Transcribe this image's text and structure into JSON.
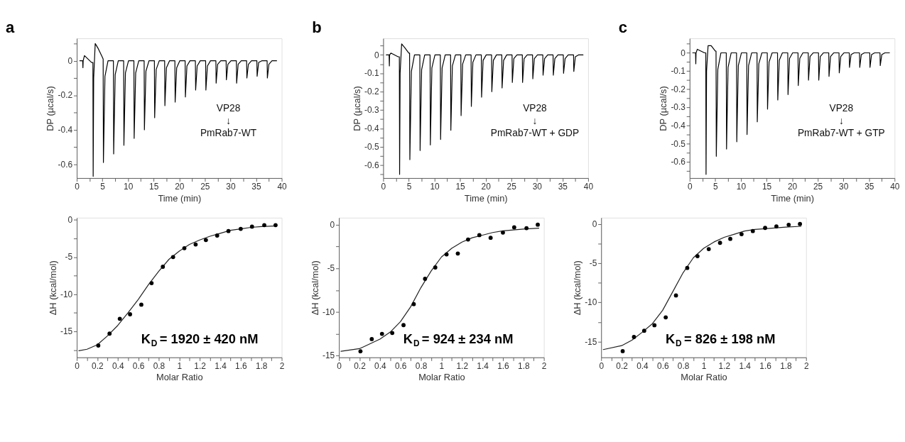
{
  "chart_data": [
    {
      "type": "line",
      "title": "a",
      "xlabel": "Time (min)",
      "ylabel": "DP (µcal/s)",
      "color": "#000000",
      "x": [
        0.6,
        1.15,
        1.2,
        1.25,
        1.5,
        2.9,
        3.15,
        3.2,
        3.3,
        3.6,
        4.2,
        5.0,
        5.15,
        5.2,
        5.5,
        6.1,
        7.15,
        7.2,
        7.5,
        8.1,
        9.15,
        9.2,
        9.5,
        10.1,
        11.15,
        11.2,
        11.5,
        12.1,
        13.15,
        13.2,
        13.5,
        14.1,
        15.15,
        15.2,
        15.5,
        16.1,
        17.15,
        17.2,
        17.5,
        18.1,
        19.15,
        19.2,
        19.5,
        20.1,
        21.15,
        21.2,
        21.5,
        22.1,
        23.15,
        23.2,
        23.5,
        24.1,
        25.15,
        25.2,
        25.5,
        26.1,
        27.15,
        27.2,
        27.5,
        28.1,
        29.15,
        29.2,
        29.5,
        30.1,
        31.15,
        31.2,
        31.5,
        32.1,
        33.15,
        33.2,
        33.5,
        34.1,
        35.15,
        35.2,
        35.5,
        36.1,
        37.15,
        37.2,
        37.5,
        38.1,
        39.0
      ],
      "values": [
        0,
        0,
        -0.04,
        0,
        0.03,
        -0.01,
        -0.01,
        -0.67,
        -0.1,
        0.1,
        0.07,
        0.02,
        0.01,
        -0.59,
        -0.09,
        0,
        0,
        -0.54,
        -0.08,
        0,
        0,
        -0.49,
        -0.07,
        0,
        0,
        -0.45,
        -0.07,
        0,
        0,
        -0.4,
        -0.06,
        0,
        0,
        -0.33,
        -0.05,
        0,
        0,
        -0.26,
        -0.04,
        0,
        0,
        -0.24,
        -0.04,
        0,
        0,
        -0.21,
        -0.03,
        0,
        0,
        -0.17,
        -0.03,
        0,
        0,
        -0.17,
        -0.03,
        0,
        0,
        -0.13,
        -0.02,
        0,
        0,
        -0.11,
        -0.02,
        0,
        0,
        -0.13,
        -0.02,
        0,
        0,
        -0.1,
        -0.02,
        0,
        0,
        -0.09,
        -0.01,
        0,
        0,
        -0.1,
        -0.02,
        0,
        0
      ],
      "xlim": [
        0,
        40
      ],
      "xticks": [
        0,
        {
          "value": 2.5,
          "label": null
        },
        5,
        {
          "value": 7.5,
          "label": null
        },
        10,
        {
          "value": 12.5,
          "label": null
        },
        15,
        {
          "value": 17.5,
          "label": null
        },
        20,
        {
          "value": 22.5,
          "label": null
        },
        25,
        {
          "value": 27.5,
          "label": null
        },
        30,
        {
          "value": 32.5,
          "label": null
        },
        35,
        {
          "value": 37.5,
          "label": null
        },
        40
      ],
      "ylim": [
        -0.68,
        0.13
      ],
      "yticks": [
        {
          "value": 0.1,
          "label": null
        },
        0,
        {
          "value": -0.1,
          "label": null
        },
        -0.2,
        {
          "value": -0.3,
          "label": null
        },
        -0.4,
        {
          "value": -0.5,
          "label": null
        },
        -0.6
      ],
      "annotations": [
        "VP28",
        "↓",
        "PmRab7-WT"
      ]
    },
    {
      "type": "line",
      "title": "b",
      "xlabel": "Time (min)",
      "ylabel": "DP (µcal/s)",
      "color": "#000000",
      "x": [
        0.6,
        1.15,
        1.2,
        1.25,
        1.5,
        2.9,
        3.15,
        3.2,
        3.3,
        3.6,
        4.2,
        5.0,
        5.15,
        5.2,
        5.5,
        6.1,
        7.15,
        7.2,
        7.5,
        8.1,
        9.15,
        9.2,
        9.5,
        10.1,
        11.15,
        11.2,
        11.5,
        12.1,
        13.15,
        13.2,
        13.5,
        14.1,
        15.15,
        15.2,
        15.5,
        16.1,
        17.15,
        17.2,
        17.5,
        18.1,
        19.15,
        19.2,
        19.5,
        20.1,
        21.15,
        21.2,
        21.5,
        22.1,
        23.15,
        23.2,
        23.5,
        24.1,
        25.15,
        25.2,
        25.5,
        26.1,
        27.15,
        27.2,
        27.5,
        28.1,
        29.15,
        29.2,
        29.5,
        30.1,
        31.15,
        31.2,
        31.5,
        32.1,
        33.15,
        33.2,
        33.5,
        34.1,
        35.15,
        35.2,
        35.5,
        36.1,
        37.15,
        37.2,
        37.5,
        38.1,
        39.0
      ],
      "values": [
        0,
        0,
        -0.06,
        0,
        0.01,
        -0.01,
        -0.01,
        -0.65,
        -0.1,
        0.06,
        0.04,
        0.01,
        0.01,
        -0.57,
        -0.09,
        0,
        0,
        -0.52,
        -0.08,
        0,
        0,
        -0.49,
        -0.07,
        0,
        0,
        -0.46,
        -0.07,
        0,
        0,
        -0.41,
        -0.06,
        0,
        0,
        -0.33,
        -0.05,
        0,
        0,
        -0.28,
        -0.04,
        0,
        0,
        -0.23,
        -0.03,
        0,
        0,
        -0.2,
        -0.03,
        0,
        0,
        -0.18,
        -0.03,
        0,
        0,
        -0.15,
        -0.02,
        0,
        0,
        -0.15,
        -0.02,
        0,
        0,
        -0.13,
        -0.02,
        0,
        0,
        -0.11,
        -0.02,
        0,
        0,
        -0.11,
        -0.02,
        0,
        0,
        -0.1,
        -0.02,
        0,
        0,
        -0.09,
        -0.01,
        0,
        0
      ],
      "xlim": [
        0,
        40
      ],
      "xticks": [
        0,
        {
          "value": 2.5,
          "label": null
        },
        5,
        {
          "value": 7.5,
          "label": null
        },
        10,
        {
          "value": 12.5,
          "label": null
        },
        15,
        {
          "value": 17.5,
          "label": null
        },
        20,
        {
          "value": 22.5,
          "label": null
        },
        25,
        {
          "value": 27.5,
          "label": null
        },
        30,
        {
          "value": 32.5,
          "label": null
        },
        35,
        {
          "value": 37.5,
          "label": null
        },
        40
      ],
      "ylim": [
        -0.67,
        0.09
      ],
      "yticks": [
        {
          "value": 0.05,
          "label": null
        },
        0,
        {
          "value": -0.05,
          "label": null
        },
        -0.1,
        {
          "value": -0.15,
          "label": null
        },
        -0.2,
        {
          "value": -0.25,
          "label": null
        },
        -0.3,
        {
          "value": -0.35,
          "label": null
        },
        -0.4,
        {
          "value": -0.45,
          "label": null
        },
        -0.5,
        {
          "value": -0.55,
          "label": null
        },
        -0.6,
        {
          "value": -0.65,
          "label": null
        }
      ],
      "annotations": [
        "VP28",
        "↓",
        "PmRab7-WT + GDP"
      ]
    },
    {
      "type": "line",
      "title": "c",
      "xlabel": "Time (min)",
      "ylabel": "DP (µcal/s)",
      "color": "#000000",
      "x": [
        0.6,
        1.15,
        1.2,
        1.25,
        1.5,
        2.9,
        3.15,
        3.2,
        3.3,
        3.6,
        4.2,
        5.0,
        5.15,
        5.2,
        5.5,
        6.1,
        7.15,
        7.2,
        7.5,
        8.1,
        9.15,
        9.2,
        9.5,
        10.1,
        11.15,
        11.2,
        11.5,
        12.1,
        13.15,
        13.2,
        13.5,
        14.1,
        15.15,
        15.2,
        15.5,
        16.1,
        17.15,
        17.2,
        17.5,
        18.1,
        19.15,
        19.2,
        19.5,
        20.1,
        21.15,
        21.2,
        21.5,
        22.1,
        23.15,
        23.2,
        23.5,
        24.1,
        25.15,
        25.2,
        25.5,
        26.1,
        27.15,
        27.2,
        27.5,
        28.1,
        29.15,
        29.2,
        29.5,
        30.1,
        31.15,
        31.2,
        31.5,
        32.1,
        33.15,
        33.2,
        33.5,
        34.1,
        35.15,
        35.2,
        35.5,
        36.1,
        37.15,
        37.2,
        37.5,
        38.1,
        39.0
      ],
      "values": [
        0,
        0,
        -0.06,
        0,
        0.02,
        0,
        0,
        -0.67,
        -0.1,
        0.04,
        0.04,
        0.01,
        0.01,
        -0.57,
        -0.09,
        0,
        0,
        -0.53,
        -0.08,
        0,
        0,
        -0.49,
        -0.07,
        0,
        0,
        -0.45,
        -0.07,
        0,
        0,
        -0.38,
        -0.06,
        0,
        0,
        -0.31,
        -0.05,
        0,
        0,
        -0.26,
        -0.04,
        0,
        0,
        -0.23,
        -0.03,
        0,
        0,
        -0.18,
        -0.03,
        0,
        0,
        -0.15,
        -0.02,
        0,
        0,
        -0.15,
        -0.02,
        0,
        0,
        -0.13,
        -0.02,
        0,
        0,
        -0.11,
        -0.02,
        0,
        0,
        -0.08,
        -0.01,
        0,
        0,
        -0.08,
        -0.01,
        0,
        0,
        -0.08,
        -0.01,
        0,
        0,
        -0.07,
        -0.01,
        0,
        0
      ],
      "xlim": [
        0,
        40
      ],
      "xticks": [
        0,
        {
          "value": 2.5,
          "label": null
        },
        5,
        {
          "value": 7.5,
          "label": null
        },
        10,
        {
          "value": 12.5,
          "label": null
        },
        15,
        {
          "value": 17.5,
          "label": null
        },
        20,
        {
          "value": 22.5,
          "label": null
        },
        25,
        {
          "value": 27.5,
          "label": null
        },
        30,
        {
          "value": 32.5,
          "label": null
        },
        35,
        {
          "value": 37.5,
          "label": null
        },
        40
      ],
      "ylim": [
        -0.69,
        0.08
      ],
      "yticks": [
        {
          "value": 0.05,
          "label": null
        },
        0,
        {
          "value": -0.05,
          "label": null
        },
        -0.1,
        {
          "value": -0.15,
          "label": null
        },
        -0.2,
        {
          "value": -0.25,
          "label": null
        },
        -0.3,
        {
          "value": -0.35,
          "label": null
        },
        -0.4,
        {
          "value": -0.45,
          "label": null
        },
        -0.5,
        {
          "value": -0.55,
          "label": null
        },
        -0.6,
        {
          "value": -0.65,
          "label": null
        }
      ],
      "annotations": [
        "VP28",
        "↓",
        "PmRab7-WT + GTP"
      ]
    },
    {
      "type": "scatter",
      "xlabel": "Molar Ratio",
      "ylabel": "ΔH (kcal/mol)",
      "series": [
        {
          "type": "scatter",
          "marker": "circle",
          "color": "#000000",
          "x": [
            0.21,
            0.32,
            0.42,
            0.52,
            0.63,
            0.73,
            0.84,
            0.94,
            1.05,
            1.16,
            1.26,
            1.37,
            1.48,
            1.6,
            1.71,
            1.83,
            1.94
          ],
          "values": [
            -16.9,
            -15.3,
            -13.3,
            -12.7,
            -11.4,
            -8.5,
            -6.3,
            -5.0,
            -3.8,
            -3.3,
            -2.7,
            -2.1,
            -1.5,
            -1.2,
            -0.9,
            -0.7,
            -0.7
          ]
        },
        {
          "type": "line",
          "color": "#222222",
          "x": [
            0.02,
            0.1,
            0.2,
            0.3,
            0.4,
            0.5,
            0.6,
            0.7,
            0.8,
            0.9,
            1.0,
            1.1,
            1.2,
            1.3,
            1.4,
            1.5,
            1.6,
            1.7,
            1.8,
            1.95
          ],
          "values": [
            -17.6,
            -17.4,
            -16.8,
            -15.6,
            -14.2,
            -12.5,
            -10.7,
            -8.7,
            -6.9,
            -5.3,
            -4.2,
            -3.3,
            -2.7,
            -2.2,
            -1.8,
            -1.4,
            -1.2,
            -1.0,
            -0.9,
            -0.8
          ]
        }
      ],
      "xlim": [
        0,
        2
      ],
      "xticks": [
        0,
        {
          "value": 0.1,
          "label": null
        },
        0.2,
        {
          "value": 0.3,
          "label": null
        },
        0.4,
        {
          "value": 0.5,
          "label": null
        },
        0.6,
        {
          "value": 0.7,
          "label": null
        },
        0.8,
        {
          "value": 0.9,
          "label": null
        },
        1,
        {
          "value": 1.1,
          "label": null
        },
        1.2,
        {
          "value": 1.3,
          "label": null
        },
        1.4,
        {
          "value": 1.5,
          "label": null
        },
        1.6,
        {
          "value": 1.7,
          "label": null
        },
        1.8,
        {
          "value": 1.9,
          "label": null
        },
        2
      ],
      "ylim": [
        -18.5,
        0.3
      ],
      "yticks": [
        0,
        {
          "value": -2.5,
          "label": null
        },
        -5,
        {
          "value": -7.5,
          "label": null
        },
        -10,
        {
          "value": -12.5,
          "label": null
        },
        -15,
        {
          "value": -17.5,
          "label": null
        }
      ],
      "annotations": [
        "K$_{D}$ = 1920 ± 420 nM"
      ]
    },
    {
      "type": "scatter",
      "xlabel": "Molar Ratio",
      "ylabel": "ΔH (kcal/mol)",
      "series": [
        {
          "type": "scatter",
          "marker": "circle",
          "color": "#000000",
          "x": [
            0.21,
            0.32,
            0.42,
            0.52,
            0.63,
            0.73,
            0.84,
            0.94,
            1.05,
            1.16,
            1.26,
            1.37,
            1.48,
            1.6,
            1.71,
            1.83,
            1.94
          ],
          "values": [
            -14.5,
            -13.1,
            -12.5,
            -12.4,
            -11.5,
            -9.1,
            -6.2,
            -4.9,
            -3.4,
            -3.3,
            -1.7,
            -1.2,
            -1.5,
            -0.9,
            -0.3,
            -0.4,
            0
          ]
        },
        {
          "type": "line",
          "color": "#222222",
          "x": [
            0.02,
            0.2,
            0.4,
            0.5,
            0.6,
            0.7,
            0.8,
            0.9,
            1.0,
            1.1,
            1.2,
            1.3,
            1.4,
            1.5,
            1.6,
            1.8,
            1.95
          ],
          "values": [
            -14.5,
            -14.2,
            -13.1,
            -12.3,
            -11.1,
            -9.4,
            -7.2,
            -5.3,
            -3.7,
            -2.7,
            -2.0,
            -1.5,
            -1.2,
            -0.9,
            -0.7,
            -0.5,
            -0.4
          ]
        }
      ],
      "xlim": [
        0,
        2
      ],
      "xticks": [
        0,
        {
          "value": 0.1,
          "label": null
        },
        0.2,
        {
          "value": 0.3,
          "label": null
        },
        0.4,
        {
          "value": 0.5,
          "label": null
        },
        0.6,
        {
          "value": 0.7,
          "label": null
        },
        0.8,
        {
          "value": 0.9,
          "label": null
        },
        1,
        {
          "value": 1.1,
          "label": null
        },
        1.2,
        {
          "value": 1.3,
          "label": null
        },
        1.4,
        {
          "value": 1.5,
          "label": null
        },
        1.6,
        {
          "value": 1.7,
          "label": null
        },
        1.8,
        {
          "value": 1.9,
          "label": null
        },
        2
      ],
      "ylim": [
        -15.2,
        0.8
      ],
      "yticks": [
        0,
        {
          "value": -2.5,
          "label": null
        },
        -5,
        {
          "value": -7.5,
          "label": null
        },
        -10,
        {
          "value": -12.5,
          "label": null
        },
        -15
      ],
      "annotations": [
        "K$_{D}$ = 924 ± 234 nM"
      ]
    },
    {
      "type": "scatter",
      "xlabel": "Molar Ratio",
      "ylabel": "ΔH (kcal/mol)",
      "series": [
        {
          "type": "scatter",
          "marker": "circle",
          "color": "#000000",
          "x": [
            0.21,
            0.32,
            0.42,
            0.52,
            0.63,
            0.73,
            0.84,
            0.94,
            1.05,
            1.16,
            1.26,
            1.37,
            1.48,
            1.6,
            1.71,
            1.83,
            1.94
          ],
          "values": [
            -16.2,
            -14.4,
            -13.6,
            -12.9,
            -11.9,
            -9.1,
            -5.6,
            -4.1,
            -3.2,
            -2.4,
            -1.9,
            -1.3,
            -0.9,
            -0.5,
            -0.3,
            -0.1,
            0
          ]
        },
        {
          "type": "line",
          "color": "#222222",
          "x": [
            0.02,
            0.2,
            0.3,
            0.4,
            0.5,
            0.6,
            0.7,
            0.8,
            0.9,
            1.0,
            1.1,
            1.2,
            1.3,
            1.4,
            1.5,
            1.6,
            1.8,
            1.95
          ],
          "values": [
            -16.0,
            -15.5,
            -14.8,
            -13.8,
            -12.7,
            -11.0,
            -8.6,
            -6.2,
            -4.3,
            -3.1,
            -2.3,
            -1.7,
            -1.3,
            -0.9,
            -0.7,
            -0.6,
            -0.4,
            -0.3
          ]
        }
      ],
      "xlim": [
        0,
        2
      ],
      "xticks": [
        0,
        {
          "value": 0.1,
          "label": null
        },
        0.2,
        {
          "value": 0.3,
          "label": null
        },
        0.4,
        {
          "value": 0.5,
          "label": null
        },
        0.6,
        {
          "value": 0.7,
          "label": null
        },
        0.8,
        {
          "value": 0.9,
          "label": null
        },
        1,
        {
          "value": 1.1,
          "label": null
        },
        1.2,
        {
          "value": 1.3,
          "label": null
        },
        1.4,
        {
          "value": 1.5,
          "label": null
        },
        1.6,
        {
          "value": 1.7,
          "label": null
        },
        1.8,
        {
          "value": 1.9,
          "label": null
        },
        2
      ],
      "ylim": [
        -17,
        0.8
      ],
      "yticks": [
        0,
        {
          "value": -2.5,
          "label": null
        },
        -5,
        {
          "value": -7.5,
          "label": null
        },
        -10,
        {
          "value": -12.5,
          "label": null
        },
        -15
      ],
      "annotations": [
        "K$_{D}$ = 826 ± 198 nM"
      ]
    }
  ]
}
